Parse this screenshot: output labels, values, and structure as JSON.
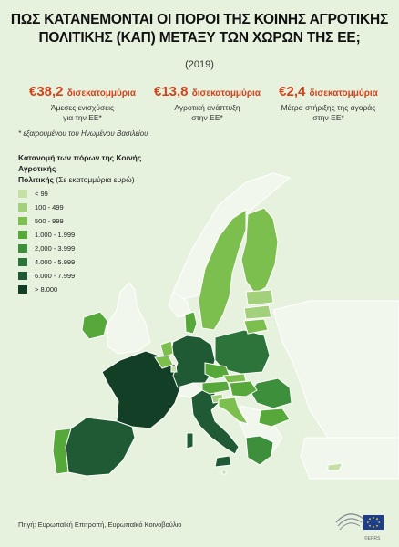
{
  "header": {
    "title_line1": "ΠΩΣ ΚΑΤΑΝΕΜΟΝΤΑΙ ΟΙ ΠΟΡΟΙ ΤΗΣ ΚΟΙΝΗΣ ΑΓΡΟΤΙΚΗΣ",
    "title_line2": "ΠΟΛΙΤΙΚΗΣ (ΚΑΠ) ΜΕΤΑΞΥ ΤΩΝ ΧΩΡΩΝ ΤΗΣ ΕΕ;",
    "year": "(2019)"
  },
  "stats": [
    {
      "amount": "€38,2",
      "unit": "δισεκατομμύρια",
      "desc_line1": "Άμεσες ενισχύσεις",
      "desc_line2": "για την ΕΕ*"
    },
    {
      "amount": "€13,8",
      "unit": "δισεκατομμύρια",
      "desc_line1": "Αγροτική ανάπτυξη",
      "desc_line2": "στην ΕΕ*"
    },
    {
      "amount": "€2,4",
      "unit": "δισεκατομμύρια",
      "desc_line1": "Μέτρα στήριξης της αγοράς",
      "desc_line2": "στην ΕΕ*"
    }
  ],
  "footnote": "* εξαιρουμένου του Ηνωμένου Βασιλείου",
  "legend": {
    "title_line1": "Κατανομή των πόρων της Κοινής Αγροτικής",
    "title_bold2": "Πολιτικής",
    "title_unit": " (Σε εκατομμύρια ευρώ)",
    "items": [
      {
        "label": "< 99",
        "color": "#c5e0a5"
      },
      {
        "label": "100 - 499",
        "color": "#a3d07a"
      },
      {
        "label": "500 - 999",
        "color": "#7dbf4f"
      },
      {
        "label": "1.000 - 1.999",
        "color": "#56a83a"
      },
      {
        "label": "2,000 - 3.999",
        "color": "#3d8f3b"
      },
      {
        "label": "4.000 - 5.999",
        "color": "#2c7439"
      },
      {
        "label": "6.000 - 7.999",
        "color": "#1f5a34"
      },
      {
        "label": "> 8.000",
        "color": "#143f27"
      }
    ]
  },
  "map": {
    "non_eu_color": "#f2f7ed",
    "countries": [
      {
        "name": "France",
        "bin": 7
      },
      {
        "name": "Spain",
        "bin": 6
      },
      {
        "name": "Portugal",
        "bin": 3
      },
      {
        "name": "Italy",
        "bin": 6
      },
      {
        "name": "Germany",
        "bin": 6
      },
      {
        "name": "Ireland",
        "bin": 3
      },
      {
        "name": "Poland",
        "bin": 5
      },
      {
        "name": "Romania",
        "bin": 4
      },
      {
        "name": "Greece",
        "bin": 4
      },
      {
        "name": "Hungary",
        "bin": 3
      },
      {
        "name": "Austria",
        "bin": 3
      },
      {
        "name": "Czechia",
        "bin": 3
      },
      {
        "name": "Bulgaria",
        "bin": 3
      },
      {
        "name": "Sweden",
        "bin": 2
      },
      {
        "name": "Finland",
        "bin": 2
      },
      {
        "name": "Denmark",
        "bin": 3
      },
      {
        "name": "Netherlands",
        "bin": 2
      },
      {
        "name": "Belgium",
        "bin": 2
      },
      {
        "name": "Lithuania",
        "bin": 2
      },
      {
        "name": "Latvia",
        "bin": 1
      },
      {
        "name": "Estonia",
        "bin": 1
      },
      {
        "name": "Slovakia",
        "bin": 2
      },
      {
        "name": "Slovenia",
        "bin": 1
      },
      {
        "name": "Croatia",
        "bin": 2
      },
      {
        "name": "Luxembourg",
        "bin": 0
      },
      {
        "name": "Cyprus",
        "bin": 0
      },
      {
        "name": "Malta",
        "bin": 0
      }
    ]
  },
  "source": "Πηγή: Ευρωπαϊκή Επιτροπή, Ευρωπαϊκό Κοινοβούλιο",
  "logo_text": "©EPRS"
}
